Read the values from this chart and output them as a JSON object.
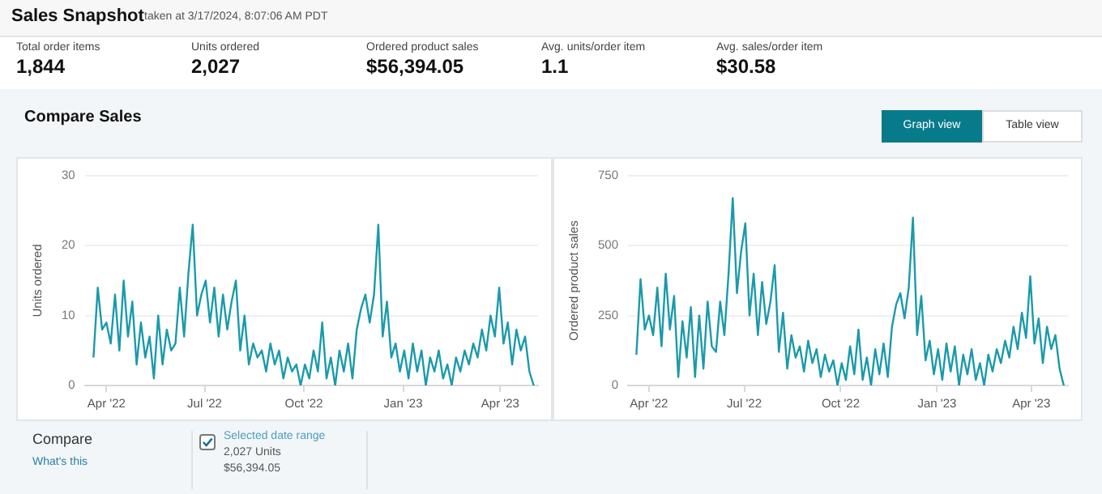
{
  "chart_data": [
    {
      "type": "other",
      "title": "Sales Snapshot",
      "subtitle": "taken at 3/17/2024, 8:07:06 AM PDT",
      "categories": [
        "Total order items",
        "Units ordered",
        "Ordered product sales",
        "Avg. units/order item",
        "Avg. sales/order item"
      ],
      "value_labels": [
        "1,844",
        "2,027",
        "$56,394.05",
        "1.1",
        "$30.58"
      ]
    },
    {
      "type": "other",
      "title": "Compare Sales",
      "annotations": [
        "Graph view",
        "Table view"
      ]
    },
    {
      "type": "line",
      "ylabel": "Units ordered",
      "xlim": [
        "2022-03-12",
        "2023-05-06"
      ],
      "ylim": [
        0,
        30
      ],
      "yticks": [
        0,
        10,
        20,
        30
      ],
      "xticks": [
        {
          "value": "2022-04-01",
          "label": "Apr '22"
        },
        {
          "value": "2022-07-01",
          "label": "Jul '22"
        },
        {
          "value": "2022-10-01",
          "label": "Oct '22"
        },
        {
          "value": "2023-01-01",
          "label": "Jan '23"
        },
        {
          "value": "2023-04-01",
          "label": "Apr '23"
        }
      ],
      "grid": "y",
      "legend": false,
      "marker": "none",
      "line_style": "solid",
      "x": [
        "2022-03-20",
        "2022-03-24",
        "2022-03-28",
        "2022-04-01",
        "2022-04-05",
        "2022-04-09",
        "2022-04-13",
        "2022-04-17",
        "2022-04-21",
        "2022-04-25",
        "2022-04-29",
        "2022-05-03",
        "2022-05-07",
        "2022-05-11",
        "2022-05-15",
        "2022-05-19",
        "2022-05-23",
        "2022-05-27",
        "2022-05-31",
        "2022-06-04",
        "2022-06-08",
        "2022-06-12",
        "2022-06-16",
        "2022-06-20",
        "2022-06-24",
        "2022-06-28",
        "2022-07-02",
        "2022-07-06",
        "2022-07-10",
        "2022-07-14",
        "2022-07-18",
        "2022-07-22",
        "2022-07-26",
        "2022-07-30",
        "2022-08-03",
        "2022-08-07",
        "2022-08-11",
        "2022-08-15",
        "2022-08-19",
        "2022-08-23",
        "2022-08-27",
        "2022-08-31",
        "2022-09-04",
        "2022-09-08",
        "2022-09-12",
        "2022-09-16",
        "2022-09-20",
        "2022-09-24",
        "2022-09-28",
        "2022-10-02",
        "2022-10-06",
        "2022-10-10",
        "2022-10-14",
        "2022-10-18",
        "2022-10-22",
        "2022-10-26",
        "2022-10-30",
        "2022-11-03",
        "2022-11-07",
        "2022-11-11",
        "2022-11-15",
        "2022-11-19",
        "2022-11-23",
        "2022-11-27",
        "2022-12-01",
        "2022-12-05",
        "2022-12-09",
        "2022-12-13",
        "2022-12-17",
        "2022-12-21",
        "2022-12-25",
        "2022-12-29",
        "2023-01-02",
        "2023-01-06",
        "2023-01-10",
        "2023-01-14",
        "2023-01-18",
        "2023-01-22",
        "2023-01-26",
        "2023-01-30",
        "2023-02-03",
        "2023-02-07",
        "2023-02-11",
        "2023-02-15",
        "2023-02-19",
        "2023-02-23",
        "2023-02-27",
        "2023-03-03",
        "2023-03-07",
        "2023-03-11",
        "2023-03-15",
        "2023-03-19",
        "2023-03-23",
        "2023-03-27",
        "2023-03-31",
        "2023-04-04",
        "2023-04-08",
        "2023-04-12",
        "2023-04-16",
        "2023-04-20",
        "2023-04-24",
        "2023-04-28",
        "2023-05-02"
      ],
      "series": [
        {
          "color": "#1a9aab",
          "values": [
            4,
            14,
            8,
            9,
            6,
            13,
            5,
            15,
            7,
            12,
            3,
            9,
            4,
            7,
            1,
            10,
            3,
            8,
            5,
            6,
            14,
            7,
            16,
            23,
            10,
            13,
            15,
            9,
            14,
            7,
            13,
            8,
            12,
            15,
            5,
            10,
            3,
            6,
            4,
            5,
            2,
            6,
            3,
            5,
            1,
            4,
            2,
            3,
            0,
            3,
            1,
            5,
            2,
            9,
            1,
            4,
            0,
            5,
            2,
            6,
            1,
            8,
            11,
            13,
            9,
            13,
            23,
            7,
            12,
            4,
            6,
            2,
            5,
            1,
            6,
            2,
            5,
            0,
            4,
            2,
            5,
            1,
            3,
            0,
            4,
            2,
            5,
            3,
            6,
            4,
            8,
            5,
            10,
            7,
            14,
            6,
            9,
            3,
            8,
            5,
            7,
            2,
            0
          ]
        }
      ]
    },
    {
      "type": "line",
      "ylabel": "Ordered product sales",
      "xlim": [
        "2022-03-12",
        "2023-05-06"
      ],
      "ylim": [
        0,
        750
      ],
      "yticks": [
        0,
        250,
        500,
        750
      ],
      "xticks": [
        {
          "value": "2022-04-01",
          "label": "Apr '22"
        },
        {
          "value": "2022-07-01",
          "label": "Jul '22"
        },
        {
          "value": "2022-10-01",
          "label": "Oct '22"
        },
        {
          "value": "2023-01-01",
          "label": "Jan '23"
        },
        {
          "value": "2023-04-01",
          "label": "Apr '23"
        }
      ],
      "grid": "y",
      "legend": false,
      "marker": "none",
      "line_style": "solid",
      "x": [
        "2022-03-20",
        "2022-03-24",
        "2022-03-28",
        "2022-04-01",
        "2022-04-05",
        "2022-04-09",
        "2022-04-13",
        "2022-04-17",
        "2022-04-21",
        "2022-04-25",
        "2022-04-29",
        "2022-05-03",
        "2022-05-07",
        "2022-05-11",
        "2022-05-15",
        "2022-05-19",
        "2022-05-23",
        "2022-05-27",
        "2022-05-31",
        "2022-06-04",
        "2022-06-08",
        "2022-06-12",
        "2022-06-16",
        "2022-06-20",
        "2022-06-24",
        "2022-06-28",
        "2022-07-02",
        "2022-07-06",
        "2022-07-10",
        "2022-07-14",
        "2022-07-18",
        "2022-07-22",
        "2022-07-26",
        "2022-07-30",
        "2022-08-03",
        "2022-08-07",
        "2022-08-11",
        "2022-08-15",
        "2022-08-19",
        "2022-08-23",
        "2022-08-27",
        "2022-08-31",
        "2022-09-04",
        "2022-09-08",
        "2022-09-12",
        "2022-09-16",
        "2022-09-20",
        "2022-09-24",
        "2022-09-28",
        "2022-10-02",
        "2022-10-06",
        "2022-10-10",
        "2022-10-14",
        "2022-10-18",
        "2022-10-22",
        "2022-10-26",
        "2022-10-30",
        "2022-11-03",
        "2022-11-07",
        "2022-11-11",
        "2022-11-15",
        "2022-11-19",
        "2022-11-23",
        "2022-11-27",
        "2022-12-01",
        "2022-12-05",
        "2022-12-09",
        "2022-12-13",
        "2022-12-17",
        "2022-12-21",
        "2022-12-25",
        "2022-12-29",
        "2023-01-02",
        "2023-01-06",
        "2023-01-10",
        "2023-01-14",
        "2023-01-18",
        "2023-01-22",
        "2023-01-26",
        "2023-01-30",
        "2023-02-03",
        "2023-02-07",
        "2023-02-11",
        "2023-02-15",
        "2023-02-19",
        "2023-02-23",
        "2023-02-27",
        "2023-03-03",
        "2023-03-07",
        "2023-03-11",
        "2023-03-15",
        "2023-03-19",
        "2023-03-23",
        "2023-03-27",
        "2023-03-31",
        "2023-04-04",
        "2023-04-08",
        "2023-04-12",
        "2023-04-16",
        "2023-04-20",
        "2023-04-24",
        "2023-04-28",
        "2023-05-02"
      ],
      "series": [
        {
          "color": "#1a9aab",
          "values": [
            110,
            380,
            200,
            250,
            180,
            350,
            140,
            400,
            200,
            320,
            30,
            230,
            100,
            280,
            30,
            250,
            60,
            300,
            140,
            120,
            300,
            180,
            400,
            670,
            330,
            480,
            580,
            250,
            400,
            180,
            370,
            220,
            300,
            430,
            120,
            260,
            60,
            180,
            100,
            140,
            50,
            160,
            80,
            130,
            30,
            110,
            50,
            90,
            0,
            80,
            20,
            140,
            40,
            200,
            20,
            100,
            0,
            130,
            40,
            150,
            30,
            210,
            290,
            330,
            240,
            350,
            600,
            180,
            320,
            90,
            160,
            40,
            130,
            20,
            150,
            50,
            140,
            0,
            110,
            40,
            130,
            20,
            80,
            0,
            110,
            50,
            130,
            80,
            160,
            100,
            210,
            130,
            260,
            170,
            390,
            150,
            240,
            80,
            210,
            130,
            180,
            60,
            0
          ]
        }
      ]
    },
    {
      "type": "other",
      "title": "Compare",
      "annotations": [
        "What's this",
        "Selected date range",
        "2,027 Units",
        "$56,394.05"
      ]
    }
  ]
}
